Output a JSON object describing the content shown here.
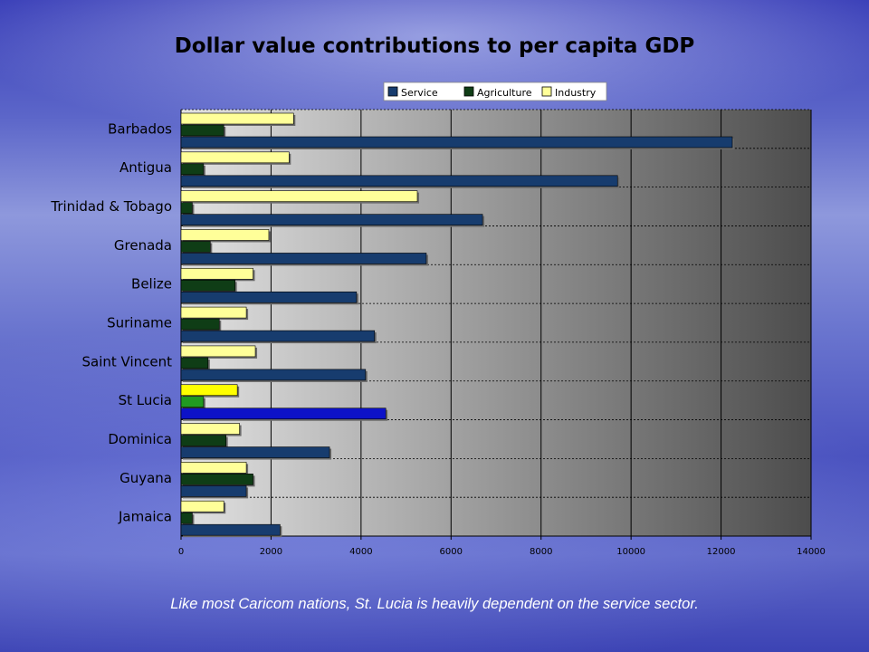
{
  "caption": "Like most Caricom nations, St. Lucia is heavily dependent on the service sector.",
  "colors": {
    "service": "#173c6e",
    "agriculture": "#0f3d16",
    "industry": "#ffff99",
    "highlight_service": "#0d12c8",
    "highlight_agriculture": "#219a21",
    "highlight_industry": "#ffff00"
  },
  "chart_data": {
    "type": "bar",
    "orientation": "horizontal",
    "title": "Dollar value contributions to per capita GDP",
    "categories": [
      "Barbados",
      "Antigua",
      "Trinidad & Tobago",
      "Grenada",
      "Belize",
      "Suriname",
      "Saint Vincent",
      "St Lucia",
      "Dominica",
      "Guyana",
      "Jamaica"
    ],
    "highlighted_category": "St Lucia",
    "series": [
      {
        "name": "Service",
        "values": [
          12250,
          9700,
          6700,
          5450,
          3900,
          4300,
          4100,
          4550,
          3300,
          1450,
          2200
        ]
      },
      {
        "name": "Agriculture",
        "values": [
          950,
          500,
          250,
          650,
          1200,
          850,
          600,
          500,
          1000,
          1600,
          250
        ]
      },
      {
        "name": "Industry",
        "values": [
          2500,
          2400,
          5250,
          1950,
          1600,
          1450,
          1650,
          1250,
          1300,
          1450,
          950
        ]
      }
    ],
    "xlim": [
      0,
      14000
    ],
    "xticks": [
      0,
      2000,
      4000,
      6000,
      8000,
      10000,
      12000,
      14000
    ],
    "legend_position": "top",
    "grid": true
  }
}
